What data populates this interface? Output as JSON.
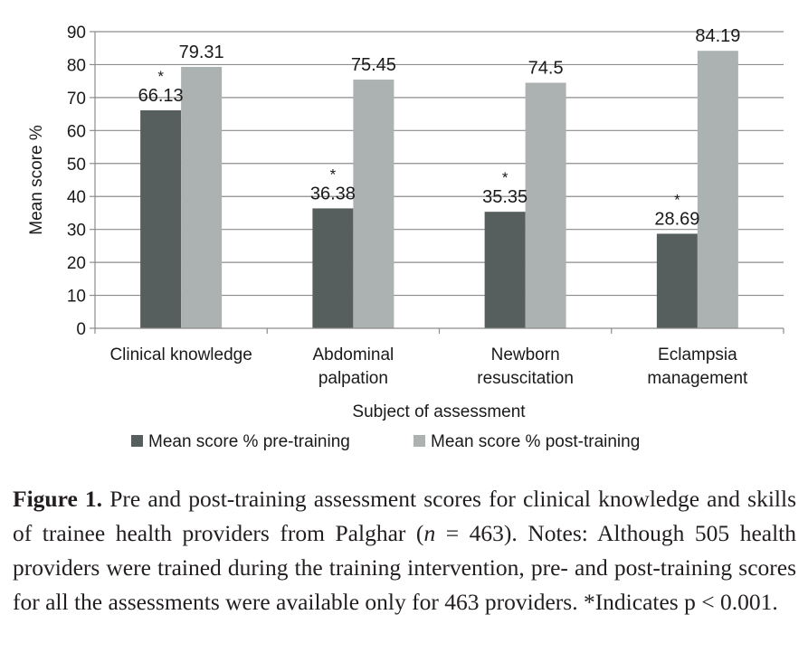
{
  "chart_data": {
    "type": "bar",
    "categories": [
      [
        "Clinical knowledge"
      ],
      [
        "Abdominal",
        "palpation"
      ],
      [
        "Newborn",
        "resuscitation"
      ],
      [
        "Eclampsia",
        "management"
      ]
    ],
    "series": [
      {
        "name": "Mean score % pre-training",
        "values": [
          66.13,
          36.38,
          35.35,
          28.69
        ],
        "color": "#565e5e"
      },
      {
        "name": "Mean score % post-training",
        "values": [
          79.31,
          75.45,
          74.5,
          84.19
        ],
        "color": "#acb2b2"
      }
    ],
    "value_labels": [
      [
        "66.13",
        "36.38",
        "35.35",
        "28.69"
      ],
      [
        "79.31",
        "75.45",
        "74.5",
        "84.19"
      ]
    ],
    "significance_marker": "*",
    "xlabel": "Subject of assessment",
    "ylabel": "Mean score %",
    "ylim": [
      0,
      90
    ],
    "yticks": [
      0,
      10,
      20,
      30,
      40,
      50,
      60,
      70,
      80,
      90
    ],
    "grid": true,
    "legend_position": "bottom"
  },
  "caption": {
    "label": "Figure 1.",
    "text_before": " Pre and post-training assessment scores for clinical knowledge and skills of trainee health providers from Palghar (",
    "n_symbol": "n",
    "text_after": " = 463). Notes: Although 505 health providers were trained during the training intervention, pre- and post-training scores for all the assessments were available only for 463 providers. *Indicates p < 0.001."
  }
}
